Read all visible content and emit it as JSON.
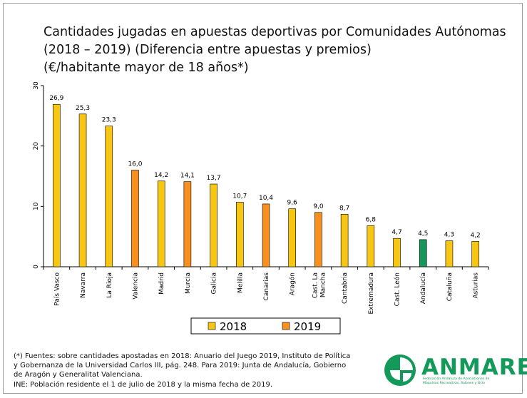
{
  "title_lines": [
    "Cantidades jugadas en apuestas deportivas por Comunidades Autónomas",
    "(2018 – 2019) (Diferencia entre apuestas y premios)",
    "(€/habitante mayor de 18 años*)"
  ],
  "chart_data": {
    "type": "bar",
    "title": "Cantidades jugadas en apuestas deportivas por Comunidades Autónomas (2018 – 2019) (Diferencia entre apuestas y premios) (€/habitante mayor de 18 años*)",
    "xlabel": "",
    "ylabel": "",
    "ylim": [
      0,
      30
    ],
    "yticks": [
      0,
      10,
      20,
      30
    ],
    "grid": false,
    "legend_position": "bottom",
    "categories": [
      "País Vasco",
      "Navarra",
      "La Rioja",
      "Valencia",
      "Madrid",
      "Murcia",
      "Galicia",
      "Melilla",
      "Canarias",
      "Aragón",
      "Cast. La Mancha",
      "Cantabria",
      "Extremadura",
      "Cast. León",
      "Andalucía",
      "Cataluña",
      "Asturias"
    ],
    "category_lines": [
      [
        "País Vasco"
      ],
      [
        "Navarra"
      ],
      [
        "La Rioja"
      ],
      [
        "Valencia"
      ],
      [
        "Madrid"
      ],
      [
        "Murcia"
      ],
      [
        "Galicia"
      ],
      [
        "Melilla"
      ],
      [
        "Canarias"
      ],
      [
        "Aragón"
      ],
      [
        "Cast. La",
        "Mancha"
      ],
      [
        "Cantabria"
      ],
      [
        "Extremadura"
      ],
      [
        "Cast. León"
      ],
      [
        "Andalucía"
      ],
      [
        "Cataluña"
      ],
      [
        "Asturias"
      ]
    ],
    "values": [
      26.9,
      25.3,
      23.3,
      16.0,
      14.2,
      14.1,
      13.7,
      10.7,
      10.4,
      9.6,
      9.0,
      8.7,
      6.8,
      4.7,
      4.5,
      4.3,
      4.2
    ],
    "value_labels": [
      "26,9",
      "25,3",
      "23,3",
      "16,0",
      "14,2",
      "14,1",
      "13,7",
      "10,7",
      "10,4",
      "9,6",
      "9,0",
      "8,7",
      "6,8",
      "4,7",
      "4,5",
      "4,3",
      "4,2"
    ],
    "bar_series": [
      "2018",
      "2018",
      "2018",
      "2019",
      "2018",
      "2019",
      "2018",
      "2018",
      "2019",
      "2018",
      "2019",
      "2018",
      "2018",
      "2018",
      "Andalucía",
      "2018",
      "2018"
    ],
    "series": [
      {
        "name": "2018",
        "color": "#f7c612"
      },
      {
        "name": "2019",
        "color": "#f7901e"
      }
    ],
    "special_color": "#17965a"
  },
  "footnote_lines": [
    "(*) Fuentes: sobre cantidades apostadas en 2018: Anuario del Juego 2019, Instituto de Política",
    "y Gobernanza de la Universidad Carlos III, pág. 248. Para 2019: Junta de Andalucía, Gobierno",
    "de Aragón y Generalitat Valenciana.",
    "INE: Población residente el 1 de julio de 2018 y la misma fecha de 2019."
  ],
  "logo": {
    "name": "ANMARE",
    "subtitle_lines": [
      "Federación Andaluza de Asociaciones de",
      "Máquinas Recreativas, Salones y Ocio"
    ]
  },
  "colors": {
    "accent": "#139a5a"
  }
}
